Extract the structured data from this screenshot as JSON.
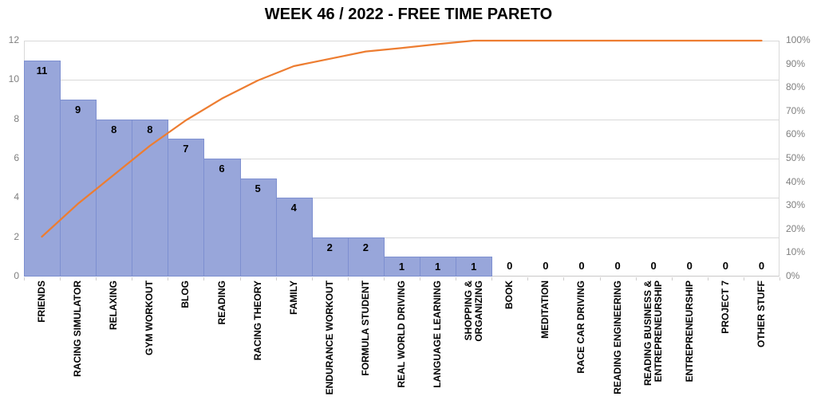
{
  "chart_data": {
    "type": "bar",
    "subtype": "pareto",
    "title": "WEEK 46 / 2022 - FREE TIME PARETO",
    "categories": [
      "FRIENDS",
      "RACING SIMULATOR",
      "RELAXING",
      "GYM WORKOUT",
      "BLOG",
      "READING",
      "RACING THEORY",
      "FAMILY",
      "ENDURANCE WORKOUT",
      "FORMULA STUDENT",
      "REAL WORLD DRIVING",
      "LANGUAGE LEARNING",
      "SHOPPING &\nORGANIZING",
      "BOOK",
      "MEDITATION",
      "RACE CAR DRIVING",
      "READING ENGINEERING",
      "READING BUSINESS &\nENTREPRENEURSHIP",
      "ENTREPRENEURSHIP",
      "PROJECT 7",
      "OTHER STUFF"
    ],
    "values": [
      11,
      9,
      8,
      8,
      7,
      6,
      5,
      4,
      2,
      2,
      1,
      1,
      1,
      0,
      0,
      0,
      0,
      0,
      0,
      0,
      0
    ],
    "cumulative_pct": [
      16.9,
      30.8,
      43.1,
      55.4,
      66.2,
      75.4,
      83.1,
      89.2,
      92.3,
      95.4,
      96.9,
      98.5,
      100,
      100,
      100,
      100,
      100,
      100,
      100,
      100,
      100
    ],
    "left_axis": {
      "min": 0,
      "max": 12,
      "step": 2,
      "tick_labels": [
        "0",
        "2",
        "4",
        "6",
        "8",
        "10",
        "12"
      ]
    },
    "right_axis": {
      "tick_labels": [
        "0%",
        "10%",
        "20%",
        "30%",
        "40%",
        "50%",
        "60%",
        "70%",
        "80%",
        "90%",
        "100%"
      ]
    },
    "grid": true,
    "legend_position": "none",
    "colors": {
      "bar_fill": "#98A6DA",
      "bar_border": "#7D8FD0",
      "line": "#ED7D31",
      "grid": "#D9D9D9",
      "axis_text": "#7F7F7F",
      "title": "#000000",
      "background": "#FFFFFF"
    }
  }
}
